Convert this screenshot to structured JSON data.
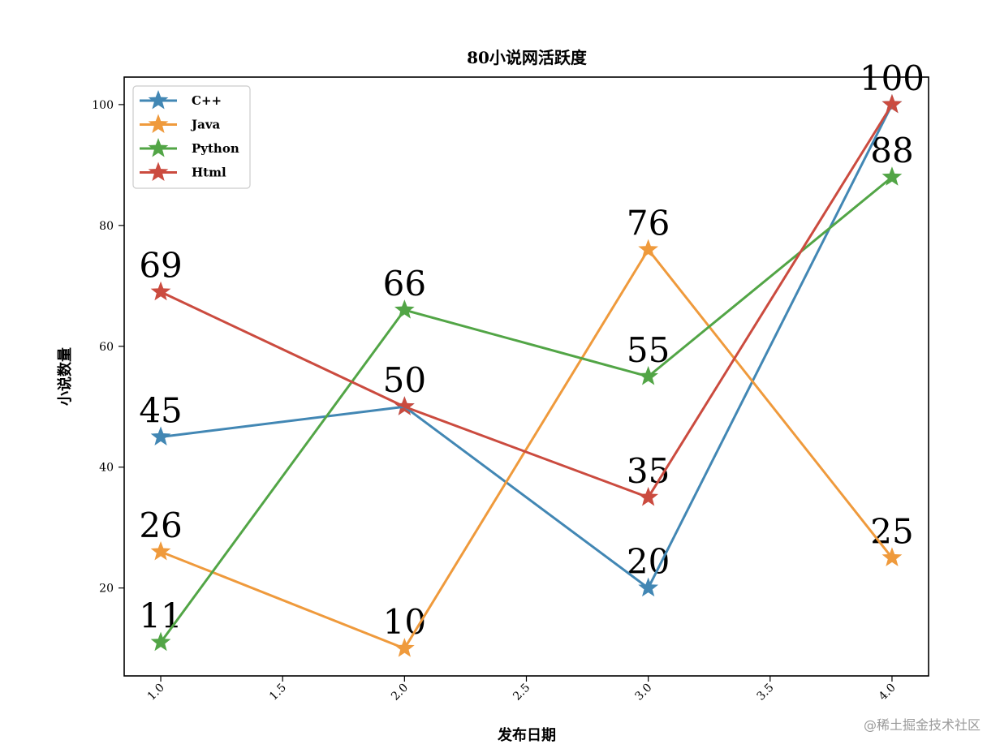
{
  "chart_data": {
    "type": "line",
    "title": "80小说网活跃度",
    "xlabel": "发布日期",
    "ylabel": "小说数量",
    "x": [
      1.0,
      2.0,
      3.0,
      4.0
    ],
    "xlim": [
      0.85,
      4.15
    ],
    "ylim": [
      5.45,
      104.55
    ],
    "xticks": [
      1.0,
      1.5,
      2.0,
      2.5,
      3.0,
      3.5,
      4.0
    ],
    "xtick_labels": [
      "1.0",
      "1.5",
      "2.0",
      "2.5",
      "3.0",
      "3.5",
      "4.0"
    ],
    "yticks": [
      20,
      40,
      60,
      80,
      100
    ],
    "ytick_labels": [
      "20",
      "40",
      "60",
      "80",
      "100"
    ],
    "grid": false,
    "legend_position": "upper-left",
    "marker": "star",
    "series": [
      {
        "name": "C++",
        "color": "#4287b4",
        "values": [
          45,
          50,
          20,
          100
        ],
        "labels": [
          "45",
          "50",
          "20",
          ""
        ]
      },
      {
        "name": "Java",
        "color": "#ef9a3c",
        "values": [
          26,
          10,
          76,
          25
        ],
        "labels": [
          "26",
          "10",
          "76",
          "25"
        ]
      },
      {
        "name": "Python",
        "color": "#52a546",
        "values": [
          11,
          66,
          55,
          88
        ],
        "labels": [
          "11",
          "66",
          "55",
          "88"
        ]
      },
      {
        "name": "Html",
        "color": "#cb4b3f",
        "values": [
          69,
          50,
          35,
          100
        ],
        "labels": [
          "69",
          "",
          "35",
          "100"
        ]
      }
    ]
  },
  "watermark": "@稀土掘金技术社区"
}
